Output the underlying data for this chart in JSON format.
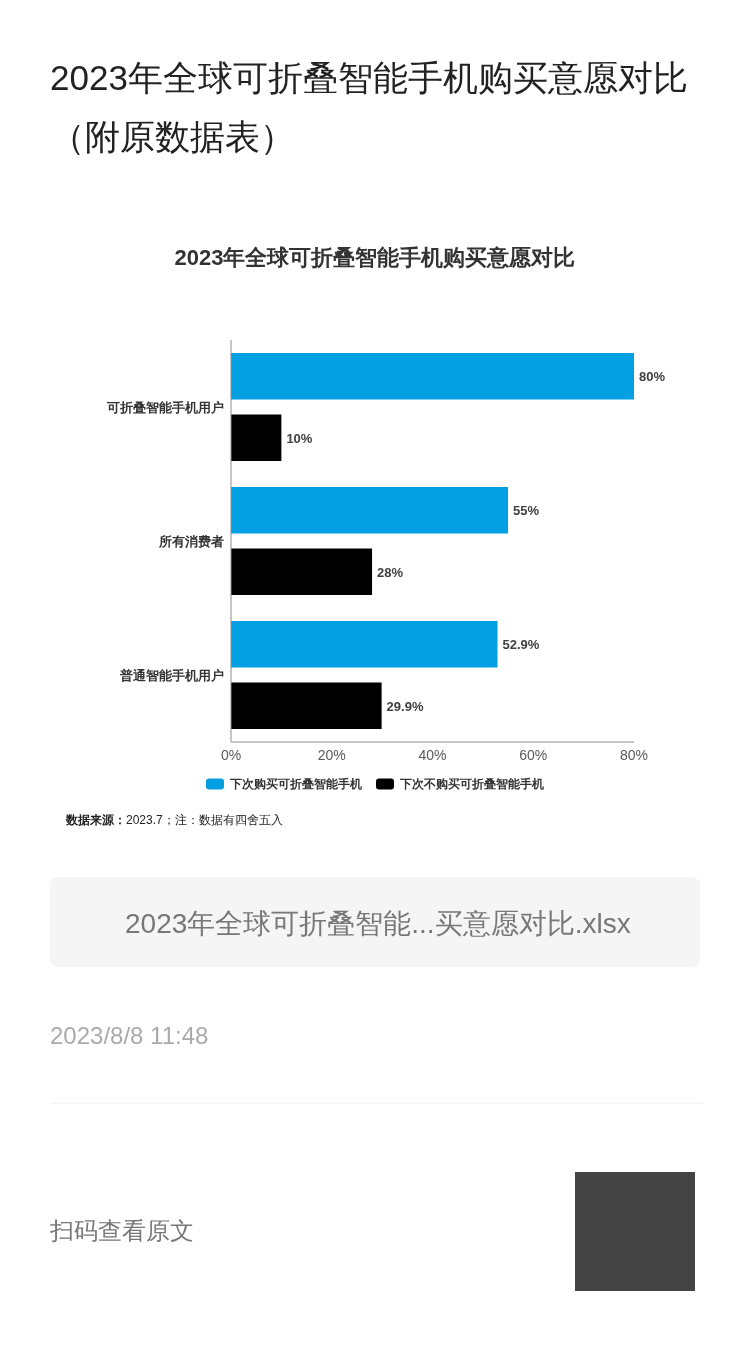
{
  "chart_data": {
    "type": "bar",
    "orientation": "horizontal",
    "title": "2023年全球可折叠智能手机购买意愿对比（附原数据表）",
    "subtitle": "2023年全球可折叠智能手机购买意愿对比",
    "categories": [
      "可折叠智能手机用户",
      "所有消费者",
      "普通智能手机用户"
    ],
    "series": [
      {
        "name": "下次购买可折叠智能手机",
        "color": "#039fe3",
        "values": [
          80,
          55,
          52.9
        ],
        "value_labels": [
          "80%",
          "55%",
          "52.9%"
        ]
      },
      {
        "name": "下次不购买可折叠智能手机",
        "color": "#000000",
        "values": [
          10,
          28,
          29.9
        ],
        "value_labels": [
          "10%",
          "28%",
          "29.9%"
        ]
      }
    ],
    "xlim": [
      0,
      80
    ],
    "xticks": [
      {
        "value": 0,
        "label": "0%"
      },
      {
        "value": 20,
        "label": "20%"
      },
      {
        "value": 40,
        "label": "40%"
      },
      {
        "value": 60,
        "label": "60%"
      },
      {
        "value": 80,
        "label": "80%"
      }
    ],
    "legend": "bottom",
    "annotations": [
      "**数据来源：**2023.7；注：数据有四舍五入",
      "2023年全球可折叠智能...买意愿对比.xlsx",
      "2023/8/8 11:48",
      "扫码查看原文"
    ]
  }
}
